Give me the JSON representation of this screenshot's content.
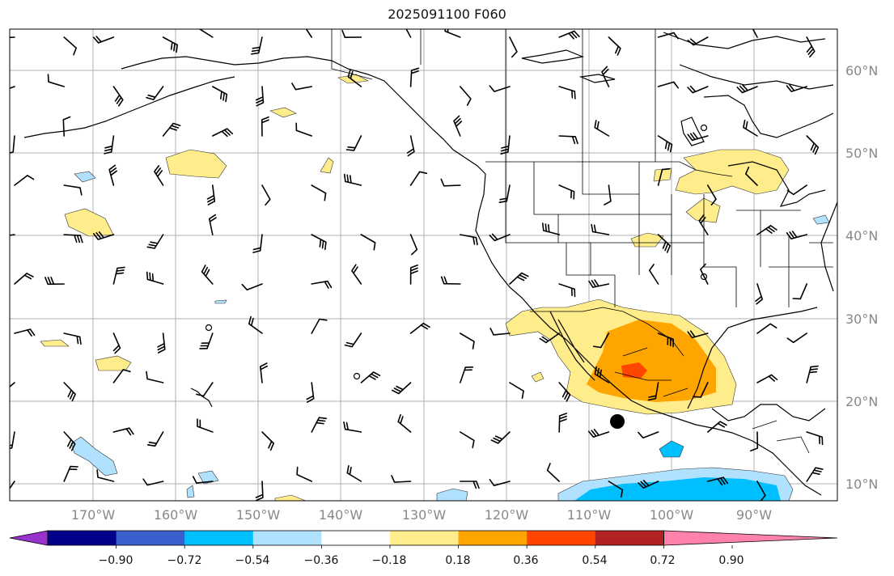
{
  "title": "2025091100 F060",
  "lat_labels": [
    "10°N",
    "20°N",
    "30°N",
    "40°N",
    "50°N",
    "60°N"
  ],
  "lon_labels": [
    "170°W",
    "160°W",
    "150°W",
    "140°W",
    "130°W",
    "120°W",
    "110°W",
    "100°W",
    "90°W"
  ],
  "colorbar": {
    "tick_labels": [
      "−0.90",
      "−0.72",
      "−0.54",
      "−0.36",
      "−0.18",
      "0.18",
      "0.36",
      "0.54",
      "0.72",
      "0.90"
    ],
    "colors": [
      "#9932CC",
      "#00008B",
      "#3A5FCD",
      "#00BFFF",
      "#B0E2FF",
      "#FFFFFF",
      "#FFEC8B",
      "#FFA500",
      "#FF4500",
      "#B22222",
      "#FF82AB"
    ]
  }
}
